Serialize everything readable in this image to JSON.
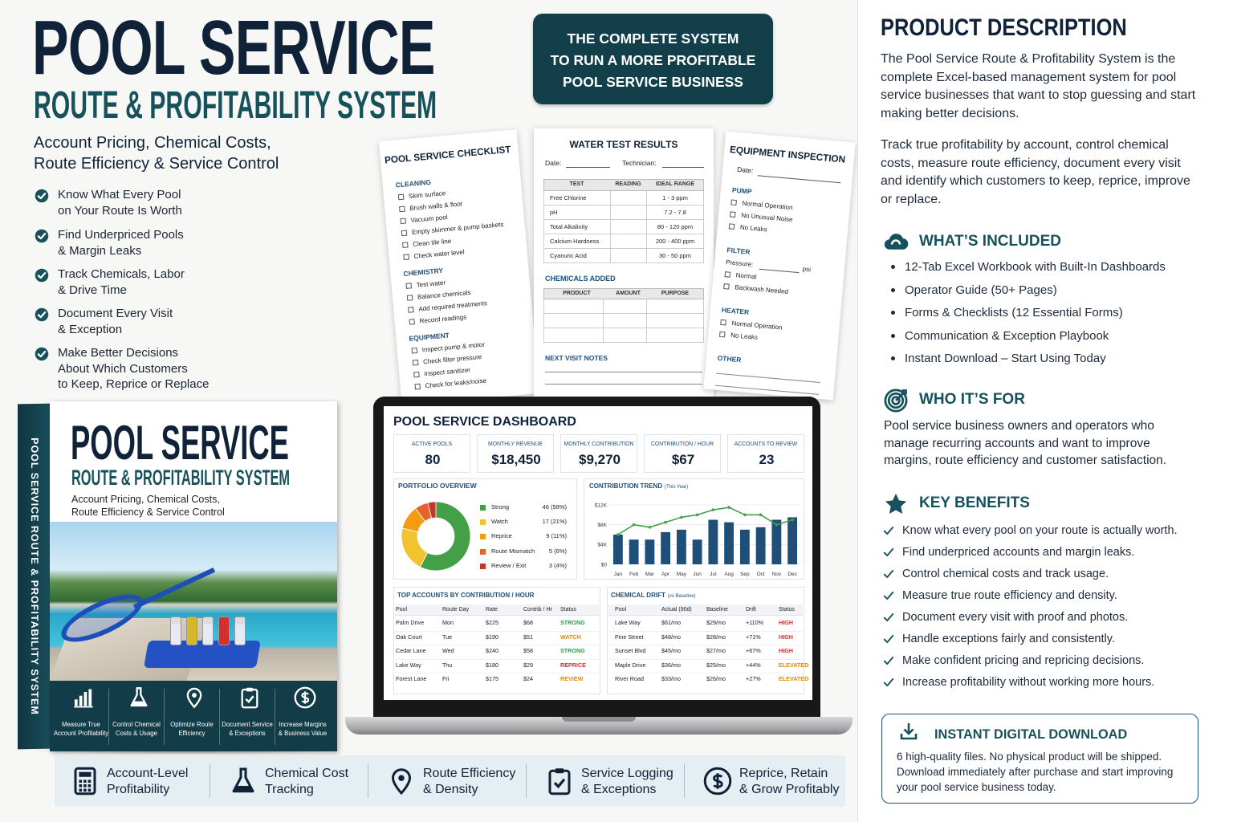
{
  "header": {
    "title": "POOL SERVICE",
    "subtitle": "ROUTE & PROFITABILITY SYSTEM",
    "tagline": [
      "Account Pricing, Chemical Costs,",
      "Route Efficiency & Service Control"
    ]
  },
  "features": [
    [
      "Know What Every Pool",
      "on Your Route Is Worth"
    ],
    [
      "Find Underpriced Pools",
      "& Margin Leaks"
    ],
    [
      "Track Chemicals, Labor",
      "& Drive Time"
    ],
    [
      "Document Every Visit",
      "& Exception"
    ],
    [
      "Make Better Decisions",
      "About Which Customers",
      "to Keep, Reprice or Replace"
    ]
  ],
  "banner": [
    "THE COMPLETE SYSTEM",
    "TO RUN A MORE PROFITABLE",
    "POOL SERVICE BUSINESS"
  ],
  "checklist": {
    "title": "POOL SERVICE CHECKLIST",
    "sections": [
      {
        "name": "CLEANING",
        "items": [
          "Skim surface",
          "Brush walls & floor",
          "Vacuum pool",
          "Empty skimmer & pump baskets",
          "Clean tile line",
          "Check water level"
        ]
      },
      {
        "name": "CHEMISTRY",
        "items": [
          "Test water",
          "Balance chemicals",
          "Add required treatments",
          "Record readings"
        ]
      },
      {
        "name": "EQUIPMENT",
        "items": [
          "Inspect pump & motor",
          "Check filter pressure",
          "Inspect sanitizer",
          "Check for leaks/noise"
        ]
      }
    ]
  },
  "water_test": {
    "title": "WATER TEST RESULTS",
    "date": "Date:",
    "technician": "Technician:",
    "headers": [
      "TEST",
      "READING",
      "IDEAL RANGE"
    ],
    "rows": [
      [
        "Free Chlorine",
        "1 - 3 ppm"
      ],
      [
        "pH",
        "7.2 - 7.8"
      ],
      [
        "Total Alkalinity",
        "80 - 120 ppm"
      ],
      [
        "Calcium Hardness",
        "200 - 400 ppm"
      ],
      [
        "Cyanuric Acid",
        "30 - 50 ppm"
      ]
    ],
    "chemicals_title": "CHEMICALS ADDED",
    "chemicals_headers": [
      "PRODUCT",
      "AMOUNT",
      "PURPOSE"
    ],
    "notes": "NEXT VISIT NOTES"
  },
  "equipment": {
    "title": "EQUIPMENT INSPECTION",
    "date": "Date:",
    "pressure": "Pressure:",
    "unit": "psi",
    "sections": [
      {
        "name": "PUMP",
        "items": [
          "Normal Operation",
          "No Unusual Noise",
          "No Leaks"
        ]
      },
      {
        "name": "FILTER",
        "items": [
          "Normal",
          "Backwash Needed"
        ]
      },
      {
        "name": "HEATER",
        "items": [
          "Normal Operation",
          "No Leaks"
        ]
      },
      {
        "name": "OTHER"
      }
    ]
  },
  "dashboard": {
    "title": "POOL SERVICE DASHBOARD",
    "kpis": [
      {
        "label": "ACTIVE POOLS",
        "value": "80"
      },
      {
        "label": "MONTHLY REVENUE",
        "value": "$18,450"
      },
      {
        "label": "MONTHLY CONTRIBUTION",
        "value": "$9,270"
      },
      {
        "label": "CONTRIBUTION / HOUR",
        "value": "$67"
      },
      {
        "label": "ACCOUNTS TO REVIEW",
        "value": "23"
      }
    ],
    "portfolio": {
      "type": "pie",
      "title": "PORTFOLIO OVERVIEW",
      "categories": [
        "Strong",
        "Watch",
        "Reprice",
        "Route Mismatch",
        "Review / Exit"
      ],
      "values": [
        46,
        17,
        9,
        5,
        3
      ],
      "value_labels": [
        "46 (58%)",
        "17 (21%)",
        "9 (11%)",
        "5 (6%)",
        "3 (4%)"
      ],
      "colors": [
        "#43a047",
        "#f2c230",
        "#f39c12",
        "#e8622c",
        "#c0392b"
      ]
    },
    "trend": {
      "type": "bar",
      "title": "CONTRIBUTION TREND",
      "note": "(This Year)",
      "categories": [
        "Jan",
        "Feb",
        "Mar",
        "Apr",
        "May",
        "Jun",
        "Jul",
        "Aug",
        "Sep",
        "Oct",
        "Nov",
        "Dec"
      ],
      "series": [
        {
          "type": "bar",
          "color": "#1f4e79",
          "values": [
            6000,
            5000,
            5000,
            6500,
            7000,
            5000,
            9000,
            8500,
            7000,
            7500,
            9000,
            9500
          ]
        },
        {
          "type": "line",
          "color": "#43a047",
          "values": [
            6000,
            8000,
            7500,
            8500,
            9500,
            10000,
            11000,
            11500,
            10000,
            10000,
            8000,
            9000
          ]
        }
      ],
      "ylim": [
        0,
        12000
      ],
      "yticks": [
        {
          "value": 0,
          "label": "$0"
        },
        {
          "value": 4000,
          "label": "$4K"
        },
        {
          "value": 8000,
          "label": "$8K"
        },
        {
          "value": 12000,
          "label": "$12K"
        }
      ]
    },
    "top_accounts": {
      "title": "TOP ACCOUNTS BY CONTRIBUTION / HOUR",
      "headers": [
        "Pool",
        "Route Day",
        "Rate",
        "Contrib / Hr",
        "Status"
      ],
      "rows": [
        [
          "Palm Drive",
          "Mon",
          "$225",
          "$68",
          "STRONG"
        ],
        [
          "Oak Court",
          "Tue",
          "$190",
          "$51",
          "WATCH"
        ],
        [
          "Cedar Lane",
          "Wed",
          "$240",
          "$58",
          "STRONG"
        ],
        [
          "Lake Way",
          "Thu",
          "$180",
          "$29",
          "REPRICE"
        ],
        [
          "Forest Lane",
          "Fri",
          "$175",
          "$24",
          "REVIEW"
        ]
      ],
      "status_colors": [
        "#2e9d4a",
        "#e08a00",
        "#2e9d4a",
        "#d32f2f",
        "#e08a00"
      ]
    },
    "chemical_drift": {
      "title": "CHEMICAL DRIFT",
      "note": "(vs Baseline)",
      "headers": [
        "Pool",
        "Actual (90d)",
        "Baseline",
        "Drift",
        "Status"
      ],
      "rows": [
        [
          "Lake Way",
          "$61/mo",
          "$29/mo",
          "+110%",
          "HIGH"
        ],
        [
          "Pine Street",
          "$48/mo",
          "$28/mo",
          "+71%",
          "HIGH"
        ],
        [
          "Sunset Blvd",
          "$45/mo",
          "$27/mo",
          "+67%",
          "HIGH"
        ],
        [
          "Maple Drive",
          "$36/mo",
          "$25/mo",
          "+44%",
          "ELEVATED"
        ],
        [
          "River Road",
          "$33/mo",
          "$26/mo",
          "+27%",
          "ELEVATED"
        ]
      ],
      "status_colors": [
        "#d32f2f",
        "#d32f2f",
        "#d32f2f",
        "#e08a00",
        "#e08a00"
      ]
    }
  },
  "box": {
    "spine": "POOL SERVICE ROUTE & PROFITABILITY SYSTEM",
    "title": "POOL SERVICE",
    "subtitle": "ROUTE & PROFITABILITY SYSTEM",
    "tagline": [
      "Account Pricing, Chemical Costs,",
      "Route Efficiency & Service Control"
    ],
    "icons": [
      [
        "Measure True",
        "Account Profitability"
      ],
      [
        "Control Chemical",
        "Costs & Usage"
      ],
      [
        "Optimize Route",
        "Efficiency"
      ],
      [
        "Document Service",
        "& Exceptions"
      ],
      [
        "Increase Margins",
        "& Business Value"
      ]
    ]
  },
  "bottom_bar": [
    [
      "Account-Level",
      "Profitability"
    ],
    [
      "Chemical Cost",
      "Tracking"
    ],
    [
      "Route Efficiency",
      "& Density"
    ],
    [
      "Service Logging",
      "& Exceptions"
    ],
    [
      "Reprice, Retain",
      "& Grow Profitably"
    ]
  ],
  "description": {
    "title": "PRODUCT DESCRIPTION",
    "paragraphs": [
      "The Pool Service Route & Profitability System is the complete Excel-based management system for pool service businesses that want to stop guessing and start making better decisions.",
      "Track true profitability by account, control chemical costs, measure route efficiency, document every visit and identify which customers to keep, reprice, improve or replace."
    ],
    "included": {
      "title": "WHAT’S INCLUDED",
      "items": [
        "12-Tab Excel Workbook with Built-In Dashboards",
        "Operator Guide (50+ Pages)",
        "Forms & Checklists (12 Essential Forms)",
        "Communication & Exception Playbook",
        "Instant Download – Start Using Today"
      ]
    },
    "audience": {
      "title": "WHO IT’S FOR",
      "text": "Pool service business owners and operators who manage recurring accounts and want to improve margins, route efficiency and customer satisfaction."
    },
    "benefits": {
      "title": "KEY BENEFITS",
      "items": [
        "Know what every pool on your route is actually worth.",
        "Find underpriced accounts and margin leaks.",
        "Control chemical costs and track usage.",
        "Measure true route efficiency and density.",
        "Document every visit with proof and photos.",
        "Handle exceptions fairly and consistently.",
        "Make confident pricing and repricing decisions.",
        "Increase profitability without working more hours."
      ]
    },
    "download": {
      "title": "INSTANT DIGITAL DOWNLOAD",
      "text": "6 high-quality files. No physical product will be shipped. Download immediately after purchase and start improving your pool service business today."
    }
  }
}
